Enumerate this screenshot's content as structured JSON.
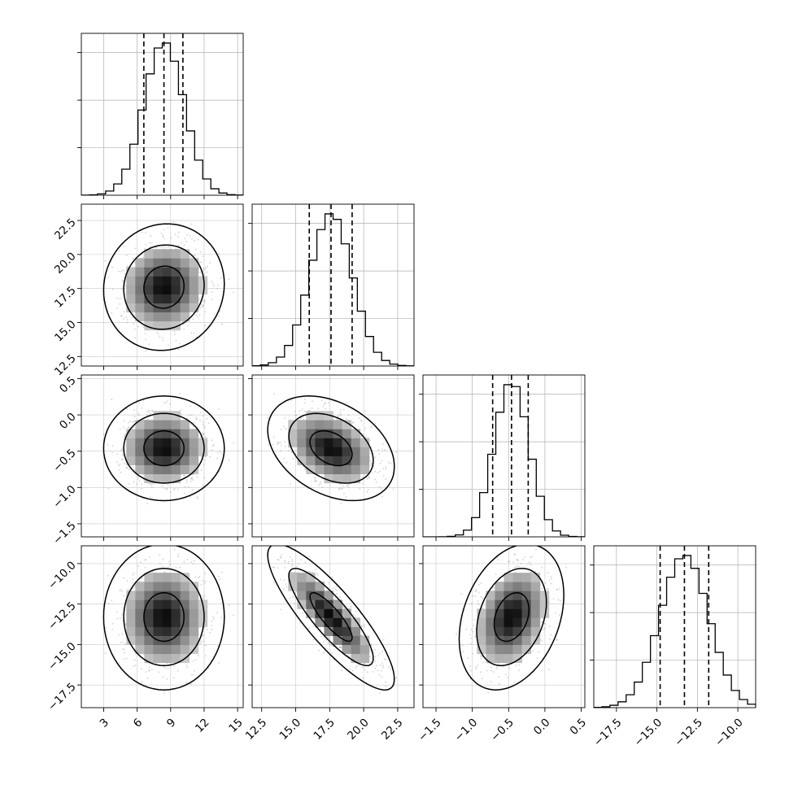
{
  "chart_data": {
    "type": "corner",
    "title": "",
    "parameters": [
      {
        "mean": 8.4,
        "sd": 1.8,
        "range": [
          1.0,
          15.5
        ],
        "ticks": [
          3,
          6,
          9,
          12,
          15
        ],
        "tick_labels": [
          "3",
          "6",
          "9",
          "12",
          "15"
        ],
        "quantiles": [
          6.6,
          8.4,
          10.1
        ]
      },
      {
        "mean": 17.6,
        "sd": 1.55,
        "range": [
          11.8,
          23.7
        ],
        "ticks": [
          12.5,
          15.0,
          17.5,
          20.0,
          22.5
        ],
        "tick_labels": [
          "12.5",
          "15.0",
          "17.5",
          "20.0",
          "22.5"
        ],
        "quantiles": [
          16.0,
          17.6,
          19.15
        ]
      },
      {
        "mean": -0.46,
        "sd": 0.24,
        "range": [
          -1.68,
          0.55
        ],
        "ticks": [
          -1.5,
          -1.0,
          -0.5,
          0.0,
          0.5
        ],
        "tick_labels": [
          "−1.5",
          "−1.0",
          "−0.5",
          "0.0",
          "0.5"
        ],
        "quantiles": [
          -0.72,
          -0.46,
          -0.23
        ]
      },
      {
        "mean": -13.3,
        "sd": 1.5,
        "range": [
          -18.9,
          -8.9
        ],
        "ticks": [
          -17.5,
          -15.0,
          -12.5,
          -10.0
        ],
        "tick_labels": [
          "−17.5",
          "−15.0",
          "−12.5",
          "−10.0"
        ],
        "quantiles": [
          -14.8,
          -13.3,
          -11.8
        ]
      }
    ],
    "correlations": [
      [
        1.0,
        0.05,
        0.0,
        0.0
      ],
      [
        0.05,
        1.0,
        -0.35,
        -0.85
      ],
      [
        0.0,
        -0.35,
        1.0,
        0.3
      ],
      [
        0.0,
        -0.85,
        0.3,
        1.0
      ]
    ],
    "histogram_bins": 20,
    "contour_levels": [
      0.393,
      0.865,
      0.989
    ],
    "samples_shown_per_panel": 1300,
    "grid": true
  }
}
